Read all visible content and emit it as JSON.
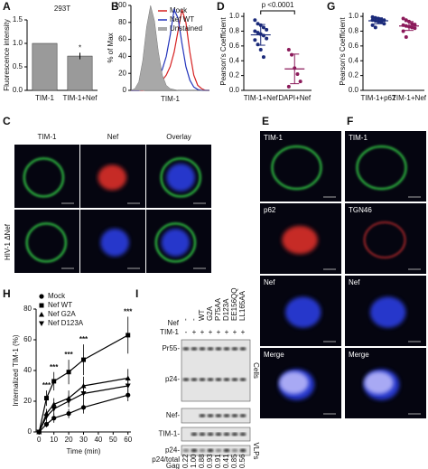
{
  "chart_data": [
    {
      "type": "bar",
      "panel": "A",
      "title": "293T",
      "ylabel": "Fluorescence intensity",
      "categories": [
        "TIM-1",
        "TIM-1+Nef"
      ],
      "values": [
        1.0,
        0.73
      ],
      "errors": [
        0,
        0.07
      ],
      "color": "#9a9a9a",
      "ylim": [
        0,
        1.5
      ],
      "yticks": [
        {
          "value": 0,
          "label": "0.0"
        },
        {
          "value": 0.5,
          "label": "0.5"
        },
        {
          "value": 1,
          "label": "1.0"
        },
        {
          "value": 1.5,
          "label": "1.5"
        }
      ],
      "annotation": "*"
    },
    {
      "type": "line",
      "panel": "B",
      "ylabel": "% of Max",
      "xlabel": "TIM-1",
      "xlim": [
        0,
        100
      ],
      "ylim": [
        0,
        100
      ],
      "yticks": [
        0,
        20,
        40,
        60,
        80,
        100
      ],
      "legend": "upper right",
      "series": [
        {
          "name": "Mock",
          "color": "#d62020",
          "x": [
            0,
            5,
            10,
            15,
            20,
            25,
            30,
            35,
            40,
            45,
            50,
            55,
            60,
            65,
            70,
            75,
            80,
            85,
            90,
            95,
            100
          ],
          "values": [
            0,
            0,
            0,
            0,
            1,
            3,
            5,
            8,
            12,
            18,
            28,
            45,
            70,
            95,
            80,
            45,
            18,
            6,
            2,
            0,
            0
          ]
        },
        {
          "name": "Nef WT",
          "color": "#2233bb",
          "x": [
            0,
            5,
            10,
            15,
            20,
            25,
            30,
            35,
            40,
            45,
            50,
            55,
            60,
            65,
            70,
            75,
            80,
            85,
            90,
            95,
            100
          ],
          "values": [
            0,
            0,
            0,
            1,
            3,
            6,
            10,
            15,
            25,
            40,
            65,
            95,
            85,
            55,
            28,
            12,
            4,
            1,
            0,
            0,
            0
          ]
        },
        {
          "name": "Unstained",
          "color": "#a8a8a8",
          "filled": true,
          "x": [
            0,
            5,
            10,
            15,
            20,
            25,
            30,
            35,
            40,
            45,
            50,
            55,
            60,
            65,
            70,
            75,
            80,
            85,
            90,
            95,
            100
          ],
          "values": [
            0,
            2,
            10,
            35,
            75,
            100,
            82,
            45,
            18,
            6,
            2,
            1,
            0,
            0,
            0,
            0,
            0,
            0,
            0,
            0,
            0
          ]
        }
      ]
    },
    {
      "type": "scatter",
      "panel": "D",
      "ylabel": "Pearson's Coefficient",
      "ylim": [
        0,
        1.05
      ],
      "yticks": [
        {
          "value": 0,
          "label": "0.0"
        },
        {
          "value": 0.2,
          "label": "0.2"
        },
        {
          "value": 0.4,
          "label": "0.4"
        },
        {
          "value": 0.6,
          "label": "0.6"
        },
        {
          "value": 0.8,
          "label": "0.8"
        },
        {
          "value": 1,
          "label": "1.0"
        }
      ],
      "annotation": "p <0.0001",
      "groups": [
        {
          "name": "TIM-1+Nef",
          "color": "#1b2a7a",
          "values": [
            0.95,
            0.9,
            0.88,
            0.85,
            0.82,
            0.8,
            0.78,
            0.76,
            0.74,
            0.7,
            0.68,
            0.62,
            0.55,
            0.45
          ],
          "mean": 0.75,
          "sd": 0.14
        },
        {
          "name": "DAPI+Nef",
          "color": "#8b1a5a",
          "values": [
            0.55,
            0.48,
            0.3,
            0.22,
            0.12,
            0.05
          ],
          "mean": 0.29,
          "sd": 0.2
        }
      ]
    },
    {
      "type": "scatter",
      "panel": "G",
      "ylabel": "Pearson's Coefficient",
      "ylim": [
        0,
        1.05
      ],
      "yticks": [
        {
          "value": 0,
          "label": "0.0"
        },
        {
          "value": 0.2,
          "label": "0.2"
        },
        {
          "value": 0.4,
          "label": "0.4"
        },
        {
          "value": 0.6,
          "label": "0.6"
        },
        {
          "value": 0.8,
          "label": "0.8"
        },
        {
          "value": 1,
          "label": "1.0"
        }
      ],
      "groups": [
        {
          "name": "TIM-1+p62",
          "color": "#1b2a7a",
          "values": [
            0.99,
            0.98,
            0.97,
            0.96,
            0.95,
            0.95,
            0.94,
            0.93,
            0.92,
            0.9,
            0.88,
            0.85
          ],
          "mean": 0.94,
          "sd": 0.04
        },
        {
          "name": "TIM-1+Nef",
          "color": "#8b1a5a",
          "values": [
            0.97,
            0.95,
            0.93,
            0.9,
            0.89,
            0.88,
            0.87,
            0.86,
            0.85,
            0.84,
            0.8,
            0.72
          ],
          "mean": 0.87,
          "sd": 0.06
        }
      ]
    },
    {
      "type": "line",
      "panel": "H",
      "ylabel": "Internalized TIM-1 (%)",
      "xlabel": "Time (min)",
      "xlim": [
        -2,
        62
      ],
      "xticks": [
        0,
        10,
        20,
        30,
        40,
        50,
        60
      ],
      "ylim": [
        0,
        80
      ],
      "yticks": [
        0,
        20,
        40,
        60,
        80
      ],
      "legend": "upper left",
      "annotation": "***",
      "annotation_x": [
        5,
        10,
        20,
        30,
        60
      ],
      "series": [
        {
          "name": "Mock",
          "color": "#000",
          "marker": "circle",
          "x": [
            0,
            5,
            10,
            20,
            30,
            60
          ],
          "values": [
            0,
            5,
            9,
            12,
            16,
            24
          ],
          "errors": [
            0,
            2,
            3,
            3,
            4,
            4
          ]
        },
        {
          "name": "Nef WT",
          "color": "#000",
          "marker": "square",
          "x": [
            0,
            5,
            10,
            20,
            30,
            60
          ],
          "values": [
            0,
            22,
            33,
            39,
            47,
            63
          ],
          "errors": [
            0,
            5,
            6,
            8,
            10,
            12
          ]
        },
        {
          "name": "Nef G2A",
          "color": "#000",
          "marker": "triangle",
          "x": [
            0,
            5,
            10,
            20,
            30,
            60
          ],
          "values": [
            0,
            12,
            18,
            22,
            30,
            35
          ],
          "errors": [
            0,
            3,
            4,
            5,
            6,
            6
          ]
        },
        {
          "name": "Nef D123A",
          "color": "#000",
          "marker": "triangle-down",
          "x": [
            0,
            5,
            10,
            20,
            30,
            60
          ],
          "values": [
            0,
            10,
            15,
            20,
            25,
            30
          ],
          "errors": [
            0,
            3,
            4,
            4,
            5,
            5
          ]
        }
      ]
    }
  ],
  "figures": {
    "C": {
      "panel": "C",
      "columns": [
        "TIM-1",
        "Nef",
        "Overlay"
      ],
      "row_label": "HIV-1 ΔNef"
    },
    "E": {
      "panel": "E",
      "rows": [
        "TIM-1",
        "p62",
        "Nef",
        "Merge"
      ]
    },
    "F": {
      "panel": "F",
      "rows": [
        "TIM-1",
        "TGN46",
        "Nef",
        "Merge"
      ]
    }
  },
  "blot": {
    "panel": "I",
    "nef_label": "Nef",
    "tim_label": "TIM-1",
    "nef_lanes": [
      "-",
      "-",
      "WT",
      "G2A",
      "P75AA",
      "D123A",
      "EE156QQ",
      "LL165AA"
    ],
    "tim_lanes": [
      "-",
      "+",
      "+",
      "+",
      "+",
      "+",
      "+",
      "+"
    ],
    "bands": [
      "Pr55-",
      "p24-",
      "Nef-",
      "TIM-1-",
      "p24-"
    ],
    "cells_label": "Cells",
    "vlps_label": "VLPs",
    "ratio_label": [
      "p24/total",
      "Gag"
    ],
    "ratios": [
      "0.22",
      "1.00",
      "0.88",
      "0.93",
      "0.91",
      "0.41",
      "0.85",
      "0.56"
    ]
  }
}
